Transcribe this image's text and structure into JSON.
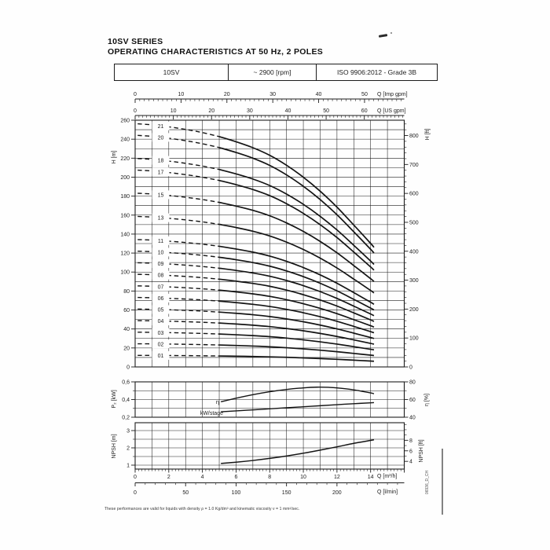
{
  "page": {
    "series_title": "10SV SERIES",
    "subtitle": "OPERATING CHARACTERISTICS AT 50 Hz, 2 POLES",
    "footnote": "These performances are valid for liquids with density ρ = 1.0 Kg/dm³ and kinematic viscosity ν = 1 mm²/sec.",
    "doc_code": "06936_D_CH",
    "ink_color": "#1c1c1c"
  },
  "header_table": {
    "model": "10SV",
    "speed": "~ 2900 [rpm]",
    "standard": "ISO 9906:2012 - Grade 3B"
  },
  "chart_data": [
    {
      "id": "head_flow",
      "type": "line",
      "x_axes_top": [
        {
          "id": "imp_gpm",
          "label": "Q [Imp gpm]",
          "units_per_m3h": 3.666,
          "major_ticks": [
            0,
            10,
            20,
            30,
            40,
            50
          ],
          "minor_step": 1
        },
        {
          "id": "us_gpm",
          "label": "Q [US gpm]",
          "units_per_m3h": 4.403,
          "major_ticks": [
            0,
            10,
            20,
            30,
            40,
            50,
            60
          ],
          "minor_step": 1
        }
      ],
      "y_left": {
        "label": "H [m]",
        "min": 0,
        "max": 260,
        "label_step": 20,
        "grid_step": 10
      },
      "y_right": {
        "label": "H [ft]",
        "m_per_unit": 0.3048,
        "label_step": 100,
        "minor_step": 20,
        "max_label": 800,
        "max_tick": 840
      },
      "q_range": [
        0,
        16
      ],
      "q_grid_step": 1,
      "curves_dashed_until_q": 5,
      "q_end": 14.2,
      "q_samples": [
        0,
        1,
        2,
        3,
        4,
        5,
        6,
        7,
        8,
        9,
        10,
        11,
        12,
        13,
        14,
        14.2
      ],
      "head_per_stage": [
        12.2,
        12.15,
        12.05,
        11.92,
        11.76,
        11.56,
        11.3,
        11.0,
        10.62,
        10.12,
        9.52,
        8.82,
        8.02,
        7.12,
        6.2,
        6.0
      ],
      "stages": [
        {
          "n": 1,
          "label": "01"
        },
        {
          "n": 2,
          "label": "02"
        },
        {
          "n": 3,
          "label": "03"
        },
        {
          "n": 4,
          "label": "04"
        },
        {
          "n": 5,
          "label": "05"
        },
        {
          "n": 6,
          "label": "06"
        },
        {
          "n": 7,
          "label": "07"
        },
        {
          "n": 8,
          "label": "08"
        },
        {
          "n": 9,
          "label": "09"
        },
        {
          "n": 10,
          "label": "10"
        },
        {
          "n": 11,
          "label": "11"
        },
        {
          "n": 13,
          "label": "13"
        },
        {
          "n": 15,
          "label": "15"
        },
        {
          "n": 17,
          "label": "17"
        },
        {
          "n": 18,
          "label": "18"
        },
        {
          "n": 20,
          "label": "20"
        },
        {
          "n": 21,
          "label": "21"
        }
      ]
    },
    {
      "id": "power_efficiency",
      "type": "line",
      "y_left": {
        "label": "P₂ [kW]",
        "min": 0.2,
        "max": 0.6,
        "tick_values": [
          0.2,
          0.4,
          0.6
        ],
        "tick_labels": [
          "0,2",
          "0,4",
          "0,6"
        ],
        "grid_step": 0.1
      },
      "y_right": {
        "label": "η [%]",
        "min": 40,
        "max": 80,
        "tick_values": [
          40,
          60,
          80
        ],
        "minor_ticks": [
          50,
          70
        ]
      },
      "series": [
        {
          "name": "η",
          "axis": "right",
          "x": [
            5.1,
            6,
            7,
            8,
            9,
            10,
            10.8,
            11.5,
            12,
            13,
            14,
            14.2
          ],
          "y": [
            57.5,
            61.5,
            65.5,
            68.8,
            71.4,
            73.2,
            74,
            73.8,
            73.2,
            71,
            67.5,
            66.5
          ]
        },
        {
          "name": "kW/stage",
          "axis": "left",
          "x": [
            5.1,
            6,
            7,
            8,
            9,
            10,
            11,
            12,
            13,
            14,
            14.2
          ],
          "y": [
            0.262,
            0.272,
            0.283,
            0.295,
            0.307,
            0.318,
            0.33,
            0.342,
            0.353,
            0.363,
            0.365
          ]
        }
      ]
    },
    {
      "id": "npsh",
      "type": "line",
      "y_left": {
        "label": "NPSH [m]",
        "tick_values": [
          1,
          2,
          3
        ],
        "minor_ticks": [
          1.5,
          2.5
        ],
        "grid_values": [
          1,
          1.5,
          2,
          2.5,
          3
        ]
      },
      "y_right": {
        "label": "NPSH [ft]",
        "tick_values": [
          4,
          6,
          8
        ],
        "minor_range": [
          4,
          11
        ],
        "m_per_unit": 0.3048
      },
      "x_axes_bottom": [
        {
          "id": "m3h",
          "label": "Q [m³/h]",
          "major_ticks": [
            0,
            2,
            4,
            6,
            8,
            10,
            12,
            14
          ],
          "minor_step": 0.2
        },
        {
          "id": "lmin",
          "label": "Q [l/min]",
          "units_per_m3h": 16.6667,
          "major_ticks": [
            0,
            50,
            100,
            150,
            200
          ],
          "minor_step": 10
        }
      ],
      "series": [
        {
          "name": "NPSH",
          "x": [
            5.1,
            6,
            7,
            8,
            9,
            10,
            11,
            12,
            13,
            14,
            14.2
          ],
          "y": [
            1.1,
            1.17,
            1.27,
            1.39,
            1.53,
            1.69,
            1.87,
            2.06,
            2.26,
            2.43,
            2.47
          ]
        }
      ]
    }
  ]
}
